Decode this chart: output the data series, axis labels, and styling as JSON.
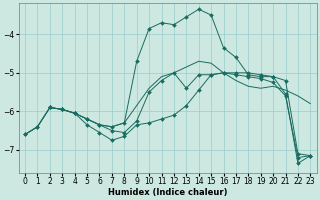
{
  "xlabel": "Humidex (Indice chaleur)",
  "ylabel": "",
  "background_color": "#cce8e0",
  "grid_color": "#99cccc",
  "line_color": "#1a6b60",
  "xlim": [
    -0.5,
    23.5
  ],
  "ylim": [
    -7.6,
    -3.2
  ],
  "yticks": [
    -7,
    -6,
    -5,
    -4
  ],
  "ytick_labels": [
    "-7",
    "-6",
    "-5",
    "-4"
  ],
  "xticks": [
    0,
    1,
    2,
    3,
    4,
    5,
    6,
    7,
    8,
    9,
    10,
    11,
    12,
    13,
    14,
    15,
    16,
    17,
    18,
    19,
    20,
    21,
    22,
    23
  ],
  "series": [
    {
      "x": [
        0,
        1,
        2,
        3,
        4,
        5,
        6,
        7,
        8,
        9,
        10,
        11,
        12,
        13,
        14,
        15,
        16,
        17,
        18,
        19,
        20,
        21,
        22,
        23
      ],
      "y": [
        -6.6,
        -6.4,
        -5.9,
        -5.95,
        -6.05,
        -6.2,
        -6.35,
        -6.4,
        -6.3,
        -5.85,
        -5.4,
        -5.1,
        -5.0,
        -4.85,
        -4.7,
        -4.75,
        -5.0,
        -5.2,
        -5.35,
        -5.4,
        -5.35,
        -5.45,
        -5.6,
        -5.8
      ],
      "marker": false
    },
    {
      "x": [
        0,
        1,
        2,
        3,
        4,
        5,
        6,
        7,
        8,
        9,
        10,
        11,
        12,
        13,
        14,
        15,
        16,
        17,
        18,
        19,
        20,
        21,
        22,
        23
      ],
      "y": [
        -6.6,
        -6.4,
        -5.9,
        -5.95,
        -6.05,
        -6.2,
        -6.35,
        -6.4,
        -6.3,
        -4.7,
        -3.85,
        -3.7,
        -3.75,
        -3.55,
        -3.35,
        -3.5,
        -4.35,
        -4.6,
        -5.05,
        -5.1,
        -5.1,
        -5.2,
        -7.1,
        -7.15
      ],
      "marker": true
    },
    {
      "x": [
        2,
        3,
        4,
        5,
        6,
        7,
        8,
        9,
        10,
        11,
        12,
        13,
        14,
        15,
        16,
        17,
        18,
        19,
        20,
        21,
        22,
        23
      ],
      "y": [
        -5.9,
        -5.95,
        -6.05,
        -6.2,
        -6.35,
        -6.5,
        -6.55,
        -6.25,
        -5.5,
        -5.2,
        -5.0,
        -5.4,
        -5.05,
        -5.05,
        -5.0,
        -5.05,
        -5.1,
        -5.15,
        -5.25,
        -5.6,
        -7.2,
        -7.15
      ],
      "marker": true
    },
    {
      "x": [
        0,
        1,
        2,
        3,
        4,
        5,
        6,
        7,
        8,
        9,
        10,
        11,
        12,
        13,
        14,
        15,
        16,
        17,
        18,
        19,
        20,
        21,
        22,
        23
      ],
      "y": [
        -6.6,
        -6.4,
        -5.9,
        -5.95,
        -6.05,
        -6.35,
        -6.55,
        -6.75,
        -6.65,
        -6.35,
        -6.3,
        -6.2,
        -6.1,
        -5.85,
        -5.45,
        -5.05,
        -5.0,
        -5.0,
        -5.0,
        -5.05,
        -5.1,
        -5.55,
        -7.35,
        -7.15
      ],
      "marker": true
    }
  ]
}
